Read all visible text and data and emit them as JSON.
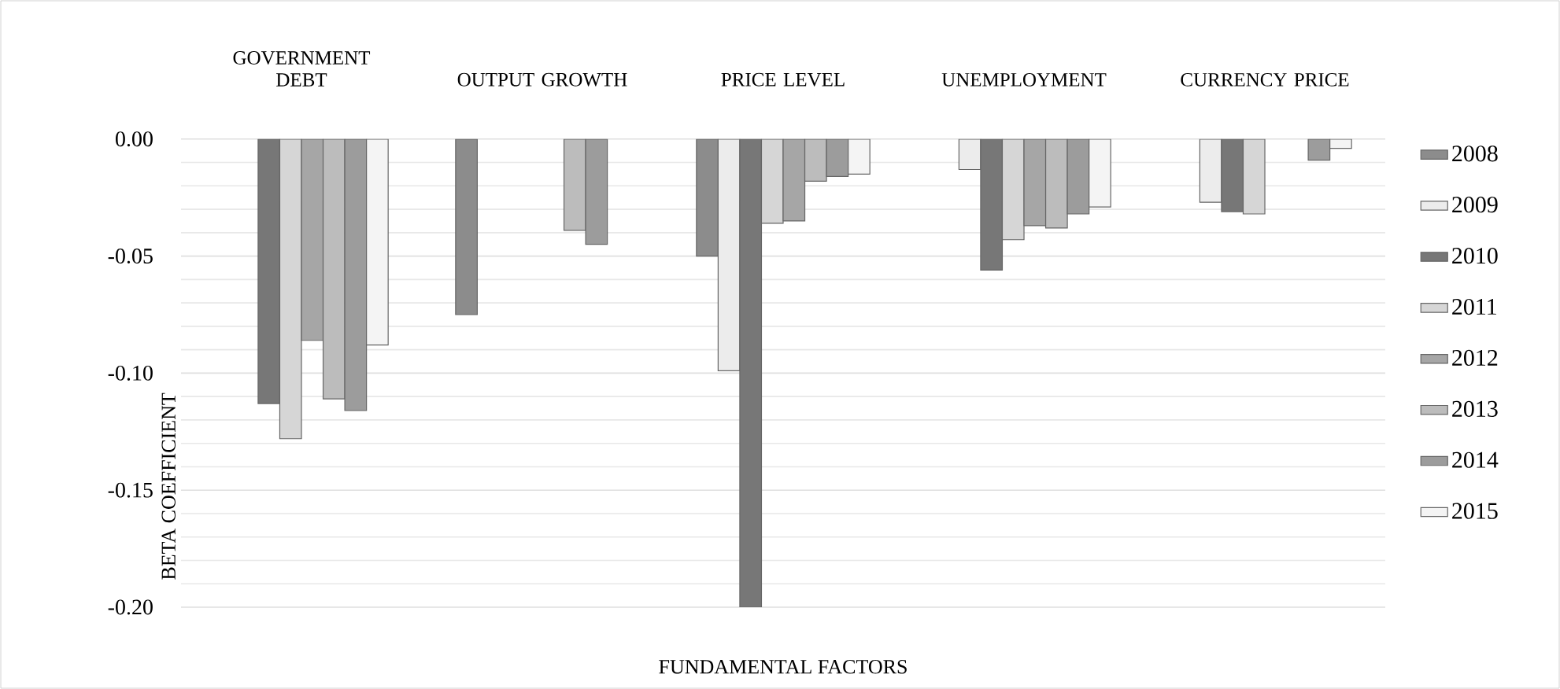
{
  "chart_data": {
    "type": "bar",
    "categories": [
      "GOVERNMENT DEBT",
      "OUTPUT GROWTH",
      "PRICE LEVEL",
      "UNEMPLOYMENT",
      "CURRENCY PRICE"
    ],
    "xlabel": "FUNDAMENTAL FACTORS",
    "ylabel": "BETA COEFFICIENT",
    "ylim": [
      -0.2,
      0
    ],
    "yticks": [
      {
        "value": 0,
        "label": "0.00"
      },
      {
        "value": -0.05,
        "label": "-0.05"
      },
      {
        "value": -0.1,
        "label": "-0.10"
      },
      {
        "value": -0.15,
        "label": "-0.15"
      },
      {
        "value": -0.2,
        "label": "-0.20"
      }
    ],
    "grid": "y",
    "legend": "right",
    "series": [
      {
        "name": "2008",
        "color": "#8c8c8c",
        "values": [
          null,
          -0.075,
          -0.05,
          null,
          null
        ]
      },
      {
        "name": "2009",
        "color": "#ececec",
        "values": [
          null,
          null,
          -0.099,
          -0.013,
          -0.027
        ]
      },
      {
        "name": "2010",
        "color": "#777777",
        "values": [
          -0.113,
          null,
          -0.2,
          -0.056,
          -0.031
        ]
      },
      {
        "name": "2011",
        "color": "#d6d6d6",
        "values": [
          -0.128,
          null,
          -0.036,
          -0.043,
          -0.032
        ]
      },
      {
        "name": "2012",
        "color": "#a6a6a6",
        "values": [
          -0.086,
          null,
          -0.035,
          -0.037,
          null
        ]
      },
      {
        "name": "2013",
        "color": "#bcbcbc",
        "values": [
          -0.111,
          -0.039,
          -0.018,
          -0.038,
          null
        ]
      },
      {
        "name": "2014",
        "color": "#9c9c9c",
        "values": [
          -0.116,
          -0.045,
          -0.016,
          -0.032,
          -0.009
        ]
      },
      {
        "name": "2015",
        "color": "#f4f4f4",
        "values": [
          -0.088,
          null,
          -0.015,
          -0.029,
          -0.004
        ]
      }
    ]
  }
}
